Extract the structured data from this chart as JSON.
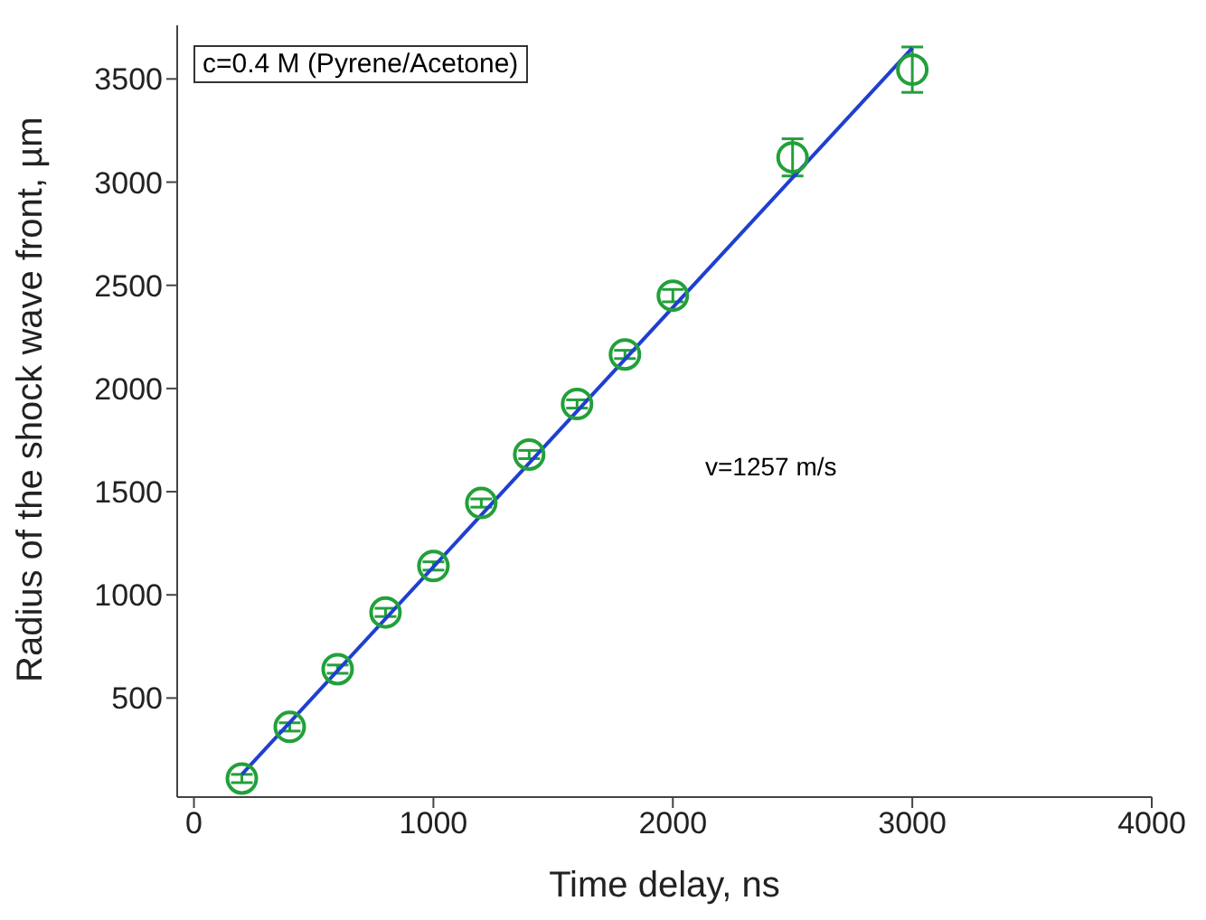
{
  "chart_data": {
    "type": "scatter",
    "xlabel": "Time delay, ns",
    "ylabel": "Radius of the shock wave front, µm",
    "annotations": [
      "c=0.4 M (Pyrene/Acetone)",
      "v=1257 m/s"
    ],
    "xlim": [
      -70,
      4000
    ],
    "xticks": [
      0,
      1000,
      2000,
      3000,
      4000
    ],
    "ylim": [
      20,
      3760
    ],
    "yticks": [
      500,
      1000,
      1500,
      2000,
      2500,
      3000,
      3500
    ],
    "marker": "circle",
    "series": [
      {
        "color": "#22a03a",
        "x": [
          200,
          400,
          600,
          800,
          1000,
          1200,
          1400,
          1600,
          1800,
          2000,
          2500,
          3000
        ],
        "values": [
          110,
          360,
          640,
          915,
          1140,
          1445,
          1680,
          1925,
          2165,
          2450,
          3120,
          3545
        ],
        "errors": [
          20,
          20,
          20,
          20,
          20,
          20,
          20,
          20,
          20,
          30,
          90,
          110
        ]
      },
      {
        "type": "line",
        "marker": "none",
        "color": "#1f3fd0",
        "x": [
          200,
          3000
        ],
        "values": [
          130,
          3650
        ]
      }
    ]
  }
}
